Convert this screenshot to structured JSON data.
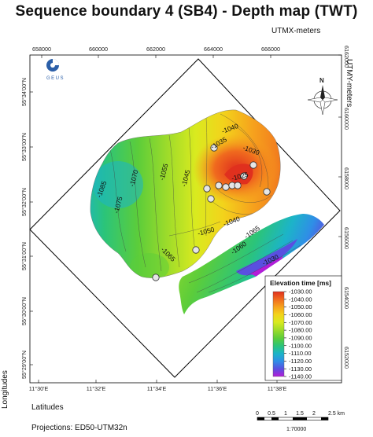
{
  "title": "Sequence boundary 4 (SB4) - Depth map (TWT)",
  "utm_x_axis": {
    "title": "UTMX-meters",
    "ticks": [
      "658000",
      "660000",
      "662000",
      "664000",
      "666000"
    ]
  },
  "utm_y_axis": {
    "title": "UTMY-meters",
    "ticks": [
      "6162000",
      "6160000",
      "6158000",
      "6156000",
      "6154000",
      "6152000"
    ]
  },
  "geo_x_axis": {
    "title": "Latitudes",
    "ticks": [
      "11°30'E",
      "11°32'E",
      "11°34'E",
      "11°36'E",
      "11°38'E"
    ]
  },
  "geo_y_axis": {
    "title": "Longitudes",
    "ticks": [
      "55°34'00\"N",
      "55°33'00\"N",
      "55°32'00\"N",
      "55°31'00\"N",
      "55°30'00\"N",
      "55°29'00\"N"
    ]
  },
  "logo": {
    "text": "GEUS",
    "icon": "geus-logo"
  },
  "north_arrow": {
    "icon": "north-arrow-icon",
    "label": "N"
  },
  "contour_labels": [
    "-1040",
    "-1035",
    "-1030",
    "-1085",
    "-1070",
    "-1055",
    "-1045",
    "-1075",
    "-1050",
    "-1040",
    "-1065",
    "-1060",
    "-1065",
    "-1025",
    "-1030"
  ],
  "legend": {
    "title": "Elevation time [ms]",
    "entries": [
      "-1030.00",
      "-1040.00",
      "-1050.00",
      "-1060.00",
      "-1070.00",
      "-1080.00",
      "-1090.00",
      "-1100.00",
      "-1110.00",
      "-1120.00",
      "-1130.00",
      "-1140.00"
    ],
    "colors": [
      "#e0301e",
      "#f06a1e",
      "#f6a21d",
      "#f3d31b",
      "#d9ea1f",
      "#9fdc2a",
      "#5ccd3a",
      "#2bc47a",
      "#1cb4c8",
      "#2f8ee6",
      "#5a4fe0",
      "#b41cd8"
    ]
  },
  "scale_bar": {
    "labels": [
      "0",
      "0.5",
      "1",
      "1.5",
      "2",
      "2.5 km"
    ],
    "ratio": "1:70000"
  },
  "projection": "Projections: ED50-UTM32n"
}
